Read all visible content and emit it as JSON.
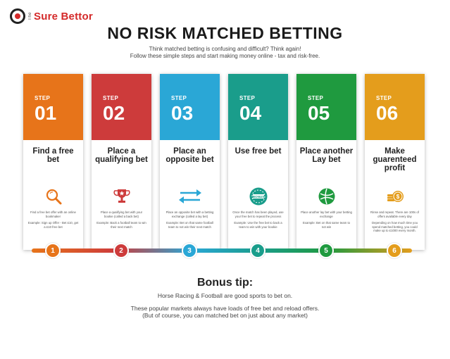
{
  "brand": {
    "prefix": "The",
    "name": "Sure Bettor"
  },
  "header": {
    "title": "NO RISK MATCHED BETTING",
    "subtitle_1": "Think matched betting is confusing and difficult? Think again!",
    "subtitle_2": "Follow these simple steps and start making money online - tax and risk-free."
  },
  "steps": [
    {
      "label": "STEP",
      "number": "01",
      "title": "Find a free bet",
      "icon": "magnifier-icon",
      "color": "#e7741a",
      "desc_1": "Find a free bet offer with an online bookmaker",
      "desc_2": "Example: Sign up Offer - Bet £10, get a £10 free bet",
      "dot": "1"
    },
    {
      "label": "STEP",
      "number": "02",
      "title": "Place a qualifying bet",
      "icon": "trophy-icon",
      "color": "#cd3b3b",
      "desc_1": "Place a qualifying bet with your bookie (called a back bet)",
      "desc_2": "Example: Back a football team to win their next match",
      "dot": "2"
    },
    {
      "label": "STEP",
      "number": "03",
      "title": "Place an opposite bet",
      "icon": "swap-arrows-icon",
      "color": "#2aa7d6",
      "desc_1": "Place an opposite bet with a betting exchange (called a lay bet)",
      "desc_2": "Example: Bet on that same football team to not win their next match",
      "dot": "3"
    },
    {
      "label": "STEP",
      "number": "04",
      "title": "Use free bet",
      "icon": "bonus-chip-icon",
      "color": "#1a9d8b",
      "desc_1": "Once the match has been played, use your free bet to repeat the process",
      "desc_2": "Example: Use the free bet to back a team to win with your bookie",
      "dot": "4"
    },
    {
      "label": "STEP",
      "number": "05",
      "title": "Place another Lay bet",
      "icon": "football-icon",
      "color": "#1f9a3f",
      "desc_1": "Place another lay bet with your betting exchange",
      "desc_2": "Example: Bet on that same team to not win",
      "dot": "5"
    },
    {
      "label": "STEP",
      "number": "06",
      "title": "Make guarenteed profit",
      "icon": "coins-icon",
      "color": "#e49d1c",
      "desc_1": "Rinse and repeat. There are 100s of offers available every day",
      "desc_2": "Depending on how much time you spend matched betting, you could make up to £1000 every month.",
      "dot": "6"
    }
  ],
  "bonus": {
    "title": "Bonus tip:",
    "line_1": "Horse Racing & Football are good sports to bet on.",
    "line_2": "These popular markets always have loads of free bet and reload offers.",
    "line_3": "(But of course, you can matched bet on just about any market)"
  }
}
